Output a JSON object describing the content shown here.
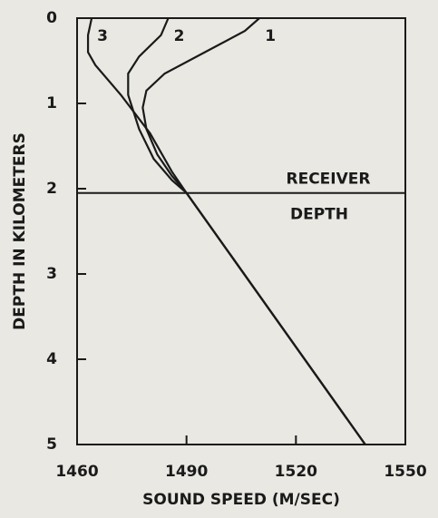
{
  "chart_data": {
    "type": "line",
    "xlabel": "SOUND SPEED (M/SEC)",
    "ylabel": "DEPTH IN KILOMETERS",
    "xlim": [
      1460,
      1550
    ],
    "xticks": [
      1460,
      1490,
      1520,
      1550
    ],
    "ylim": [
      0,
      5
    ],
    "yticks": [
      0,
      1,
      2,
      3,
      4,
      5
    ],
    "y_inverted": true,
    "color": "#1a1a1a",
    "series": [
      {
        "name": "1",
        "x": [
          1510,
          1506,
          1495,
          1484,
          1479,
          1478,
          1479,
          1482,
          1486,
          1490,
          1539
        ],
        "values": [
          0,
          0.15,
          0.4,
          0.65,
          0.85,
          1.05,
          1.3,
          1.6,
          1.85,
          2.05,
          5
        ]
      },
      {
        "name": "2",
        "x": [
          1485,
          1483,
          1477,
          1474,
          1474,
          1477,
          1481,
          1486,
          1490,
          1539
        ],
        "values": [
          0,
          0.2,
          0.45,
          0.65,
          0.9,
          1.3,
          1.65,
          1.9,
          2.05,
          5
        ]
      },
      {
        "name": "3",
        "x": [
          1464,
          1463,
          1463,
          1465,
          1472,
          1480,
          1486,
          1490,
          1539
        ],
        "values": [
          0,
          0.2,
          0.4,
          0.55,
          0.9,
          1.35,
          1.8,
          2.05,
          5
        ]
      }
    ],
    "annotation": {
      "lines": [
        "RECEIVER",
        "DEPTH"
      ],
      "y": 2.05
    }
  }
}
